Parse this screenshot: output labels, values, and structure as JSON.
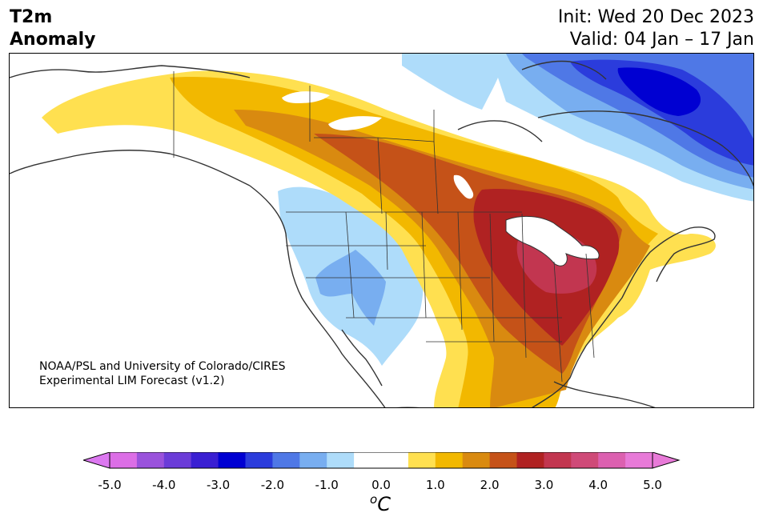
{
  "header": {
    "title_line1": "T2m",
    "title_line2": "Anomaly",
    "init": "Init: Wed 20 Dec 2023",
    "valid": "Valid: 04 Jan – 17 Jan"
  },
  "credit": {
    "line1": "NOAA/PSL and University of Colorado/CIRES",
    "line2": "Experimental LIM Forecast (v1.2)"
  },
  "colorbar": {
    "unit_symbol": "o",
    "unit_letter": "C",
    "ticks": [
      "-5.0",
      "-4.0",
      "-3.0",
      "-2.0",
      "-1.0",
      "0.0",
      "1.0",
      "2.0",
      "3.0",
      "4.0",
      "5.0"
    ],
    "colors": [
      "#dc6ee6",
      "#9a52dc",
      "#6b3cd8",
      "#3a1fd2",
      "#0000d2",
      "#2b3cdc",
      "#4f78e6",
      "#78aef0",
      "#aedcfa",
      "#ffffff",
      "#ffffff",
      "#ffe050",
      "#f2b800",
      "#d98a10",
      "#c55218",
      "#b02222",
      "#c23650",
      "#cf4a78",
      "#dc60b0",
      "#e87ad8"
    ],
    "under_color": "#dc78f0",
    "over_color": "#e87ad8"
  },
  "map": {
    "land_outline_color": "#333333",
    "anomaly_colors": {
      "warm1": "#ffe050",
      "warm2": "#f2b800",
      "warm3": "#d98a10",
      "warm4": "#c55218",
      "warm5": "#b02222",
      "warm6": "#c23650",
      "cool1": "#aedcfa",
      "cool2": "#78aef0",
      "cool3": "#4f78e6",
      "cool4": "#2b3cdc",
      "cool5": "#0000d2",
      "cool6": "#3a1fd2"
    }
  }
}
